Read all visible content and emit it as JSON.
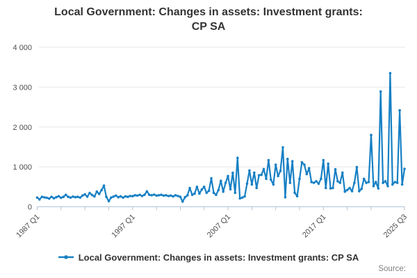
{
  "title": {
    "text": "Local Government: Changes in assets: Investment grants: CP SA",
    "line1": "Local Government: Changes in assets: Investment grants:",
    "line2": "CP SA"
  },
  "legend": {
    "label": "Local Government: Changes in assets: Investment grants: CP SA"
  },
  "footer": {
    "source_label": "Source:"
  },
  "colors": {
    "line": "#1780c4",
    "grid": "#e6e6e6",
    "axis": "#b0c4d6",
    "title_text": "#333333",
    "tick_text": "#4d4d4d",
    "source_text": "#808080",
    "background": "#ffffff"
  },
  "chart_data": {
    "type": "line",
    "title": "Local Government: Changes in assets: Investment grants: CP SA",
    "frequency": "quarterly",
    "start_period": "1987 Q1",
    "end_period": "2025 Q3",
    "ylim": [
      0,
      4000
    ],
    "y_ticks": [
      0,
      1000,
      2000,
      3000,
      4000
    ],
    "y_tick_labels": [
      "0",
      "1 000",
      "2 000",
      "3 000",
      "4 000"
    ],
    "x_tick_labels": [
      {
        "q": 0,
        "label": "1987 Q1"
      },
      {
        "q": 40,
        "label": "1997 Q1"
      },
      {
        "q": 80,
        "label": "2007 Q1"
      },
      {
        "q": 120,
        "label": "2017 Q1"
      },
      {
        "q": 154,
        "label": "2025 Q3"
      }
    ],
    "x_minor_tick_every_quarters": 10,
    "grid": "horizontal",
    "legend_position": "bottom",
    "series": [
      {
        "name": "Local Government: Changes in assets: Investment grants: CP SA",
        "color": "#1780c4",
        "values": [
          230,
          185,
          250,
          235,
          225,
          205,
          250,
          215,
          240,
          265,
          225,
          250,
          300,
          250,
          230,
          255,
          240,
          250,
          230,
          280,
          310,
          255,
          345,
          295,
          260,
          380,
          320,
          420,
          530,
          250,
          140,
          230,
          255,
          280,
          240,
          260,
          230,
          260,
          250,
          270,
          265,
          290,
          280,
          300,
          270,
          300,
          385,
          300,
          290,
          305,
          280,
          290,
          300,
          280,
          290,
          270,
          280,
          260,
          290,
          270,
          250,
          130,
          240,
          285,
          470,
          300,
          330,
          500,
          330,
          430,
          500,
          350,
          400,
          715,
          350,
          300,
          420,
          650,
          380,
          600,
          770,
          440,
          850,
          350,
          1225,
          210,
          230,
          260,
          580,
          910,
          560,
          855,
          470,
          790,
          800,
          945,
          700,
          1170,
          680,
          560,
          1055,
          770,
          900,
          1490,
          240,
          1200,
          600,
          1140,
          350,
          265,
          700,
          1115,
          1055,
          820,
          965,
          620,
          600,
          640,
          580,
          700,
          1170,
          470,
          1080,
          460,
          470,
          940,
          640,
          600,
          855,
          380,
          420,
          470,
          390,
          600,
          995,
          390,
          450,
          700,
          600,
          620,
          1800,
          520,
          620,
          460,
          2890,
          600,
          640,
          520,
          3350,
          560,
          620,
          600,
          2420,
          560,
          950
        ]
      }
    ]
  }
}
